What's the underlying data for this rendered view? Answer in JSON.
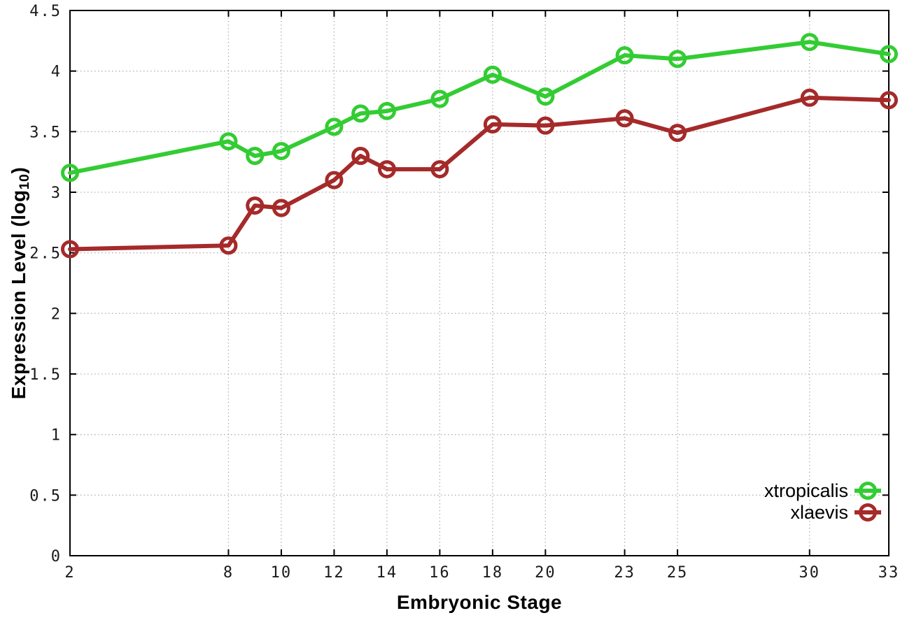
{
  "chart_data": {
    "type": "line",
    "title": "",
    "xlabel": "Embryonic Stage",
    "ylabel": "Expression Level (log10)",
    "ylabel_parts": {
      "pre": "Expression Level (log",
      "sub": "10",
      "post": ")"
    },
    "x": [
      2,
      8,
      9,
      10,
      12,
      13,
      14,
      16,
      18,
      20,
      23,
      25,
      30,
      33
    ],
    "series": [
      {
        "name": "xtropicalis",
        "color": "#33cc33",
        "marker": "open-circle",
        "values": [
          3.16,
          3.42,
          3.3,
          3.34,
          3.54,
          3.65,
          3.67,
          3.77,
          3.97,
          3.79,
          4.13,
          4.1,
          4.24,
          4.14
        ]
      },
      {
        "name": "xlaevis",
        "color": "#a52a2a",
        "marker": "open-circle",
        "values": [
          2.53,
          2.56,
          2.89,
          2.87,
          3.1,
          3.3,
          3.19,
          3.19,
          3.56,
          3.55,
          3.61,
          3.49,
          3.78,
          3.76
        ]
      }
    ],
    "xlim": [
      2,
      33
    ],
    "ylim": [
      0,
      4.5
    ],
    "xticks": [
      2,
      8,
      10,
      12,
      14,
      16,
      18,
      20,
      23,
      25,
      30,
      33
    ],
    "xtick_labels": [
      "2",
      "8",
      "10",
      "12",
      "14",
      "16",
      "18",
      "20",
      "23",
      "25",
      "30",
      "33"
    ],
    "yticks": [
      0,
      0.5,
      1,
      1.5,
      2,
      2.5,
      3,
      3.5,
      4,
      4.5
    ],
    "ytick_labels": [
      "0",
      "0.5",
      "1",
      "1.5",
      "2",
      "2.5",
      "3",
      "3.5",
      "4",
      "4.5"
    ],
    "grid": true,
    "grid_style": "dotted",
    "legend_position": "bottom-right",
    "colors": {
      "border": "#000000",
      "grid": "#b0b0b0",
      "tick_text": "#1a1a1a",
      "background": "#ffffff"
    }
  }
}
